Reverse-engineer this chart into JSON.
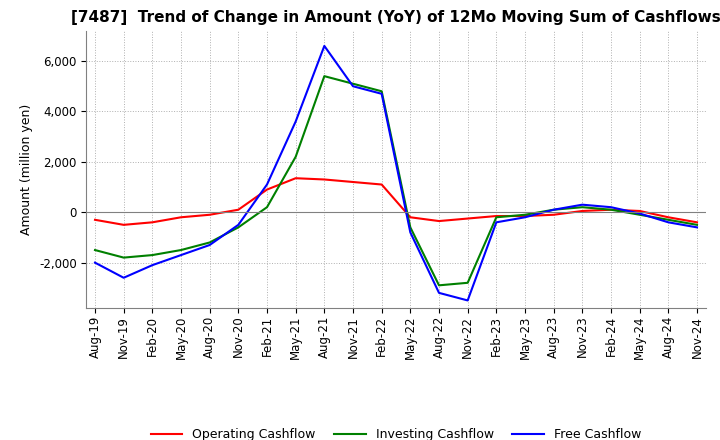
{
  "title": "[7487]  Trend of Change in Amount (YoY) of 12Mo Moving Sum of Cashflows",
  "ylabel": "Amount (million yen)",
  "title_fontsize": 11,
  "label_fontsize": 9,
  "tick_fontsize": 8.5,
  "ylim": [
    -3800,
    7200
  ],
  "yticks": [
    -2000,
    0,
    2000,
    4000,
    6000
  ],
  "x_labels": [
    "Aug-19",
    "Nov-19",
    "Feb-20",
    "May-20",
    "Aug-20",
    "Nov-20",
    "Feb-21",
    "May-21",
    "Aug-21",
    "Nov-21",
    "Feb-22",
    "May-22",
    "Aug-22",
    "Nov-22",
    "Feb-23",
    "May-23",
    "Aug-23",
    "Nov-23",
    "Feb-24",
    "May-24",
    "Aug-24",
    "Nov-24"
  ],
  "operating": [
    -300,
    -500,
    -400,
    -200,
    -100,
    100,
    900,
    1350,
    1300,
    1200,
    1100,
    -200,
    -350,
    -250,
    -150,
    -150,
    -100,
    50,
    100,
    50,
    -200,
    -400
  ],
  "investing": [
    -1500,
    -1800,
    -1700,
    -1500,
    -1200,
    -600,
    200,
    2200,
    5400,
    5100,
    4800,
    -600,
    -2900,
    -2800,
    -200,
    -100,
    100,
    200,
    100,
    -100,
    -300,
    -500
  ],
  "free": [
    -2000,
    -2600,
    -2100,
    -1700,
    -1300,
    -500,
    1100,
    3600,
    6600,
    5000,
    4700,
    -800,
    -3200,
    -3500,
    -400,
    -200,
    100,
    300,
    200,
    -50,
    -400,
    -600
  ],
  "operating_color": "#ff0000",
  "investing_color": "#008000",
  "free_color": "#0000ff",
  "background_color": "#ffffff",
  "grid_color": "#b0b0b0"
}
